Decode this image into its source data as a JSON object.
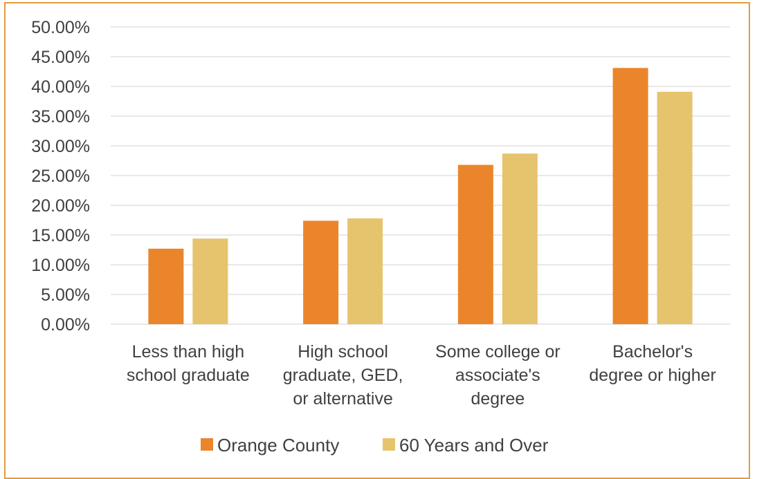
{
  "chart_data": {
    "type": "bar",
    "title": "",
    "xlabel": "",
    "ylabel": "",
    "categories": [
      [
        "Less than high",
        "school graduate"
      ],
      [
        "High school",
        "graduate, GED,",
        "or alternative"
      ],
      [
        "Some college or",
        "associate's",
        "degree"
      ],
      [
        "Bachelor's",
        "degree or higher"
      ]
    ],
    "series": [
      {
        "name": "Orange County",
        "color": "#EB852B",
        "values": [
          12.7,
          17.4,
          26.8,
          43.1
        ]
      },
      {
        "name": "60 Years and Over",
        "color": "#E6C46E",
        "values": [
          14.4,
          17.8,
          28.7,
          39.1
        ]
      }
    ],
    "ylim": [
      0,
      50
    ],
    "yticks": [
      "0.00%",
      "5.00%",
      "10.00%",
      "15.00%",
      "20.00%",
      "25.00%",
      "30.00%",
      "35.00%",
      "40.00%",
      "45.00%",
      "50.00%"
    ],
    "grid": true,
    "legend_position": "bottom"
  }
}
